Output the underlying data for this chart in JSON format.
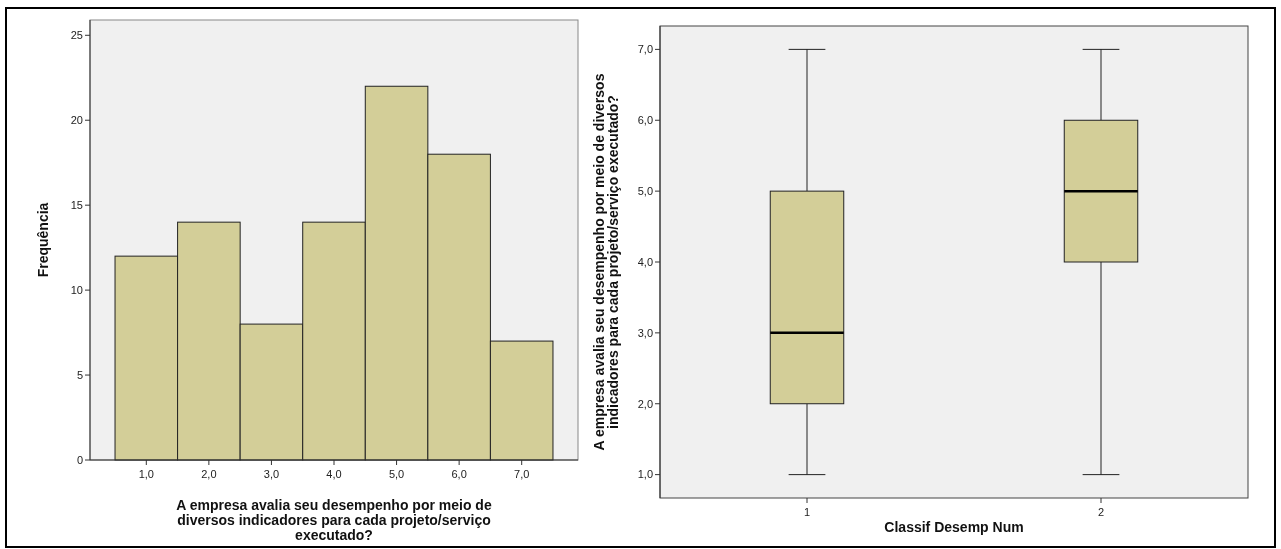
{
  "chart_data": [
    {
      "type": "histogram",
      "bins": [
        0.5,
        1.5,
        2.5,
        3.5,
        4.5,
        5.5,
        6.5,
        7.5
      ],
      "values": [
        12,
        14,
        8,
        14,
        22,
        18,
        7
      ],
      "color": "#d3ce98",
      "xlim": [
        0.1,
        7.9
      ],
      "xticks": [
        {
          "value": 1,
          "label": "1,0"
        },
        {
          "value": 2,
          "label": "2,0"
        },
        {
          "value": 3,
          "label": "3,0"
        },
        {
          "value": 4,
          "label": "4,0"
        },
        {
          "value": 5,
          "label": "5,0"
        },
        {
          "value": 6,
          "label": "6,0"
        },
        {
          "value": 7,
          "label": "7,0"
        }
      ],
      "ylim": [
        0,
        25.9
      ],
      "yticks": [
        0,
        5,
        10,
        15,
        20,
        25
      ],
      "xlabel": "A empresa avalia seu desempenho por meio de diversos indicadores para cada projeto/serviço executado?",
      "ylabel": "Frequência"
    },
    {
      "type": "box",
      "categories": [
        "1",
        "2"
      ],
      "color": "#d3ce98",
      "boxes": [
        {
          "low": 1,
          "q1": 2,
          "median": 3,
          "q3": 5,
          "high": 7
        },
        {
          "low": 1,
          "q1": 4,
          "median": 5,
          "q3": 6,
          "high": 7
        }
      ],
      "ylim": [
        0.67,
        7.33
      ],
      "yticks": [
        {
          "value": 1,
          "label": "1,0"
        },
        {
          "value": 2,
          "label": "2,0"
        },
        {
          "value": 3,
          "label": "3,0"
        },
        {
          "value": 4,
          "label": "4,0"
        },
        {
          "value": 5,
          "label": "5,0"
        },
        {
          "value": 6,
          "label": "6,0"
        },
        {
          "value": 7,
          "label": "7,0"
        }
      ],
      "xlabel": "Classif Desemp Num",
      "ylabel": "A empresa avalia seu desempenho por meio de diversos indicadores para cada projeto/serviço executado?"
    }
  ]
}
